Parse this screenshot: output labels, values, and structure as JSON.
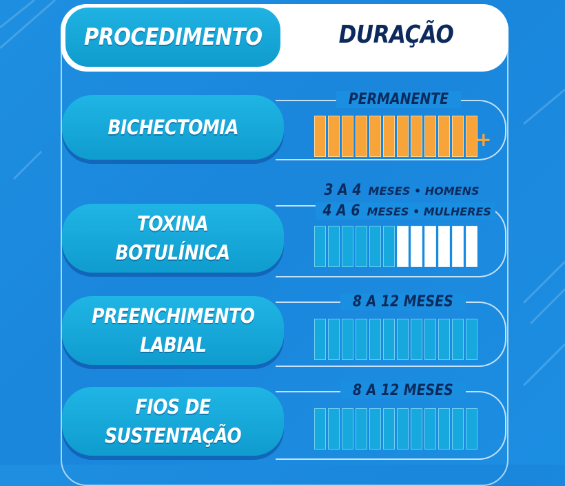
{
  "header": {
    "procedure_label": "PROCEDIMENTO",
    "duration_label": "DURAÇÃO"
  },
  "rows": [
    {
      "procedure_line1": "BICHECTOMIA",
      "procedure_line2": "",
      "duration": "PERMANENTE",
      "bar_color": "orange",
      "filled_bars": 12,
      "total_bars": 12,
      "extra": "+"
    },
    {
      "procedure_line1": "TOXINA",
      "procedure_line2": "BOTULÍNICA",
      "duration_men_range": "3 A 4",
      "duration_men_unit": "MESES • HOMENS",
      "duration_women_range": "4 A 6",
      "duration_women_unit": "MESES • MULHERES",
      "bar_color": "blue",
      "filled_bars": 6,
      "total_bars": 12
    },
    {
      "procedure_line1": "PREENCHIMENTO",
      "procedure_line2": "LABIAL",
      "duration": "8 A 12 MESES",
      "bar_color": "blue",
      "filled_bars": 12,
      "total_bars": 12
    },
    {
      "procedure_line1": "FIOS DE",
      "procedure_line2": "SUSTENTAÇÃO",
      "duration": "8 A 12 MESES",
      "bar_color": "blue",
      "filled_bars": 12,
      "total_bars": 12
    }
  ],
  "colors": {
    "background": "#1a8ee0",
    "accent_orange": "#f7a43b",
    "dark_text": "#0d2a5c",
    "pill_blue": "#17a9dd"
  }
}
